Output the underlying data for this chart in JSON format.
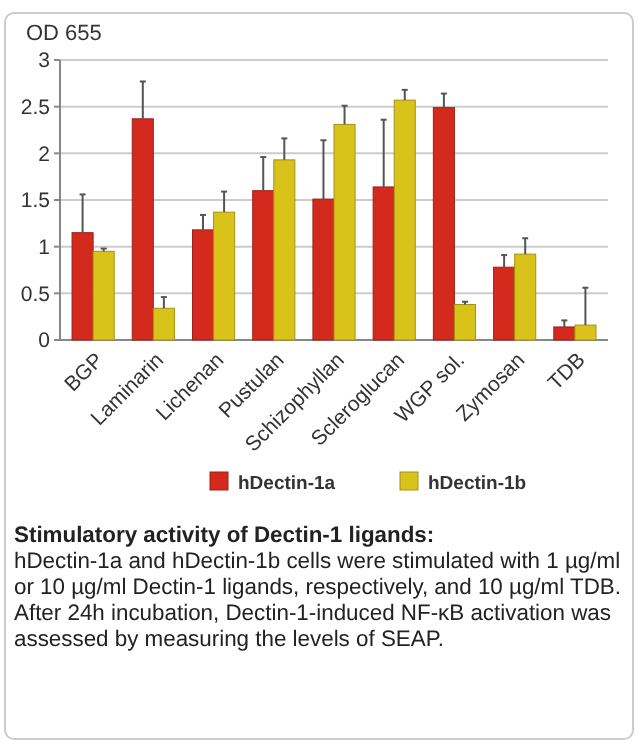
{
  "chart_data": {
    "type": "bar",
    "ylabel": "OD 655",
    "categories": [
      "BGP",
      "Laminarin",
      "Lichenan",
      "Pustulan",
      "Schizophyllan",
      "Scleroglucan",
      "WGP sol.",
      "Zymosan",
      "TDB"
    ],
    "series": [
      {
        "name": "hDectin-1a",
        "color": "#d42a1e",
        "values": [
          1.15,
          2.37,
          1.18,
          1.6,
          1.51,
          1.64,
          2.49,
          0.78,
          0.14
        ],
        "errors": [
          [
            1.15,
            1.56
          ],
          [
            2.37,
            2.77
          ],
          [
            1.18,
            1.34
          ],
          [
            1.6,
            1.96
          ],
          [
            1.51,
            2.14
          ],
          [
            1.64,
            2.36
          ],
          [
            2.49,
            2.64
          ],
          [
            0.78,
            0.91
          ],
          [
            0.14,
            0.21
          ]
        ]
      },
      {
        "name": "hDectin-1b",
        "color": "#d9c21a",
        "values": [
          0.95,
          0.34,
          1.37,
          1.93,
          2.31,
          2.57,
          0.38,
          0.92,
          0.16
        ],
        "errors": [
          [
            0.95,
            0.98
          ],
          [
            0.34,
            0.46
          ],
          [
            1.37,
            1.59
          ],
          [
            1.93,
            2.16
          ],
          [
            2.31,
            2.51
          ],
          [
            2.57,
            2.68
          ],
          [
            0.38,
            0.41
          ],
          [
            0.92,
            1.09
          ],
          [
            0.16,
            0.56
          ]
        ]
      }
    ],
    "ylim": [
      0,
      3
    ],
    "yticks": [
      0,
      0.5,
      1,
      1.5,
      2,
      2.5,
      3
    ],
    "grid": "y",
    "legend": "bottom",
    "annotations": [
      "Stimulatory activity of Dectin-1 ligands:",
      "hDectin-1a and hDectin-1b cells were stimulated with 1 µg/ml or 10 µg/ml Dectin-1 ligands, respectively, and 10 µg/ml TDB.",
      "After 24h incubation, Dectin-1-induced NF-κB activation was assessed by measuring the levels of SEAP."
    ]
  }
}
